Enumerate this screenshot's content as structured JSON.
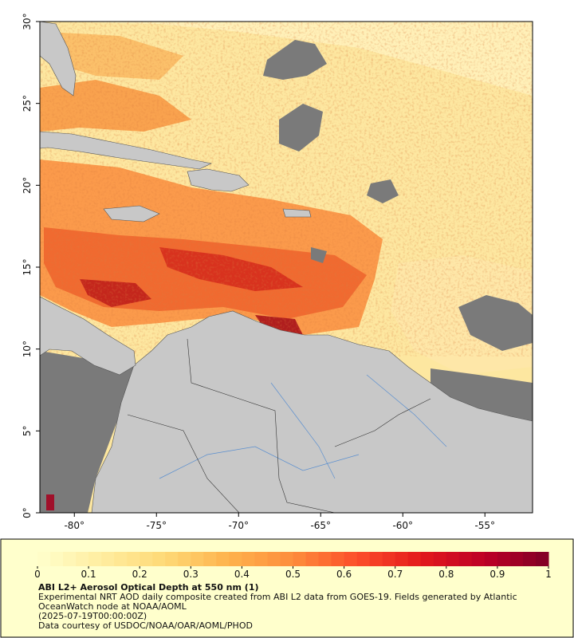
{
  "map": {
    "lonlim": [
      -82.1,
      -52.1
    ],
    "latlim": [
      0,
      30
    ],
    "lonticks": [
      {
        "value": -80,
        "label": "-80°"
      },
      {
        "value": -75,
        "label": "-75°"
      },
      {
        "value": -70,
        "label": "-70°"
      },
      {
        "value": -65,
        "label": "-65°"
      },
      {
        "value": -60,
        "label": "-60°"
      },
      {
        "value": -55,
        "label": "-55°"
      }
    ],
    "latticks": [
      {
        "value": 0,
        "label": "0°"
      },
      {
        "value": 5,
        "label": "5°"
      },
      {
        "value": 10,
        "label": "10°"
      },
      {
        "value": 15,
        "label": "15°"
      },
      {
        "value": 20,
        "label": "20°"
      },
      {
        "value": 25,
        "label": "25°"
      },
      {
        "value": 30,
        "label": "30°"
      }
    ]
  },
  "colorbar": {
    "lim": [
      0,
      1
    ],
    "ticks": [
      0,
      0.1,
      0.2,
      0.3,
      0.4,
      0.5,
      0.6,
      0.7,
      0.8,
      0.9,
      1
    ],
    "colormap": [
      "#ffffcc",
      "#ffeda0",
      "#fed976",
      "#feb24c",
      "#fd8d3c",
      "#fc4e2a",
      "#e31a1c",
      "#bd0026",
      "#800026"
    ]
  },
  "caption": {
    "title": "ABI L2+ Aerosol Optical Depth at 550 nm (1)",
    "description": "Experimental NRT AOD daily composite created from ABI L2 data from GOES-19. Fields generated by Atlantic OceanWatch node at NOAA/AOML",
    "time": "(2025-07-19T00:00:00Z)",
    "credit": "Data courtesy of USDOC/NOAA/OAR/AOML/PHOD"
  }
}
